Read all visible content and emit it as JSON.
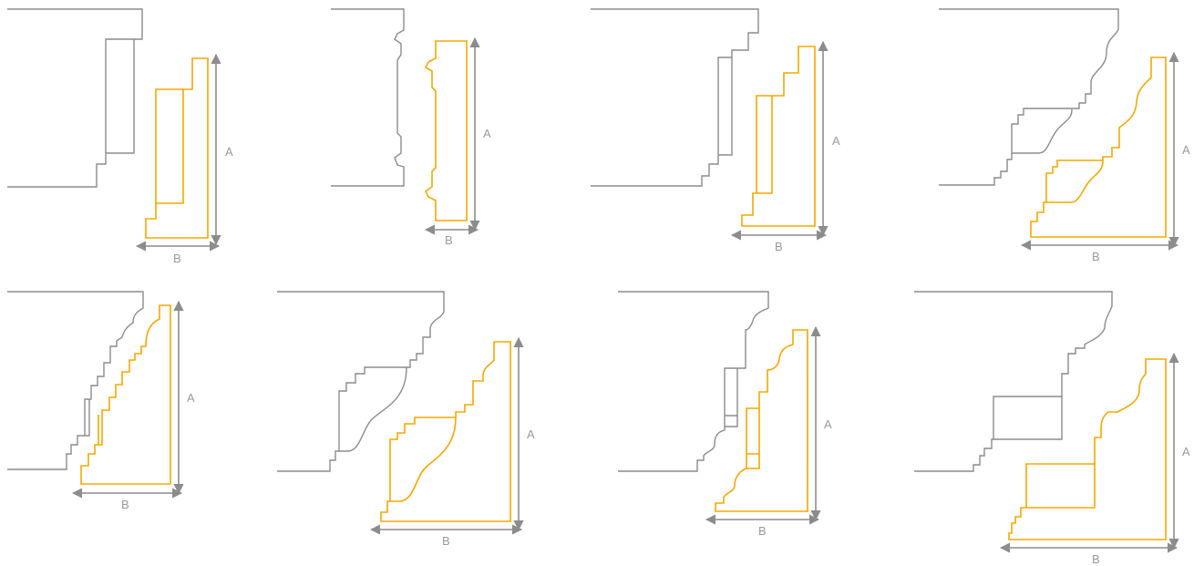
{
  "colors": {
    "existing_profile": "#8c8c8c",
    "molding_profile": "#f5a800",
    "dimension": "#8c8c8c",
    "label": "#9a9a9a"
  },
  "dimension_labels": {
    "height": "A",
    "projection": "B"
  },
  "panels": [
    {
      "id": "p1",
      "height_label": "A",
      "projection_label": "B"
    },
    {
      "id": "p2",
      "height_label": "A",
      "projection_label": "B"
    },
    {
      "id": "p3",
      "height_label": "A",
      "projection_label": "B"
    },
    {
      "id": "p4",
      "height_label": "A",
      "projection_label": "B"
    },
    {
      "id": "p5",
      "height_label": "A",
      "projection_label": "B"
    },
    {
      "id": "p6",
      "height_label": "A",
      "projection_label": "B"
    },
    {
      "id": "p7",
      "height_label": "A",
      "projection_label": "B"
    },
    {
      "id": "p8",
      "height_label": "A",
      "projection_label": "B"
    }
  ]
}
